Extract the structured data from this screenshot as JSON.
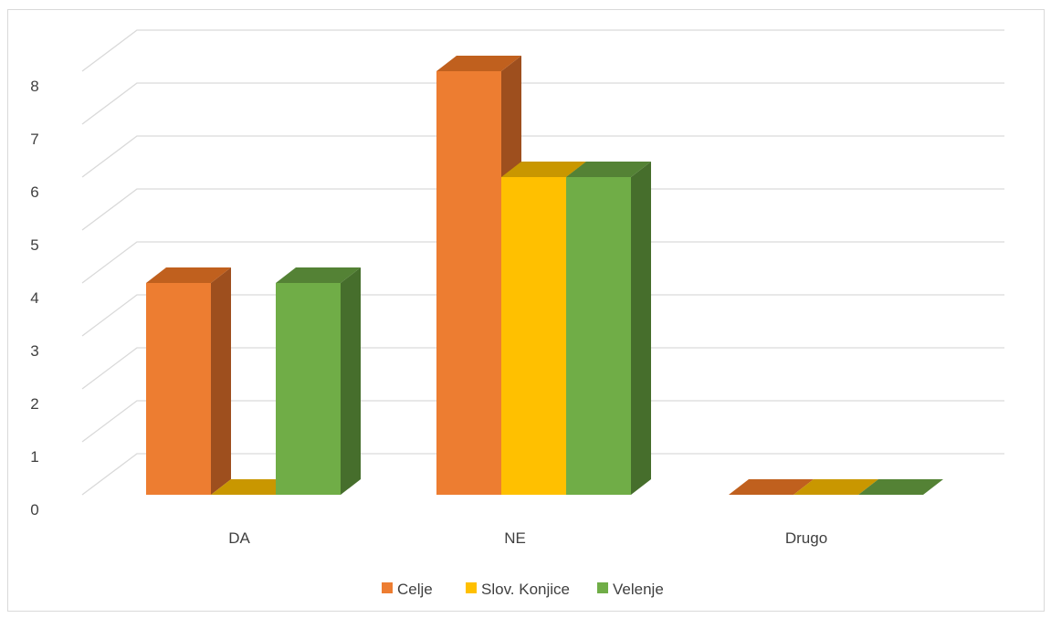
{
  "chart_data": {
    "type": "bar",
    "subtype": "3d-clustered-column",
    "categories": [
      "DA",
      "NE",
      "Drugo"
    ],
    "series": [
      {
        "name": "Celje",
        "values": [
          4,
          8,
          0
        ],
        "color": "#ED7D31",
        "side_color": "#9E4F1E",
        "top_color": "#C0601E"
      },
      {
        "name": "Slov. Konjice",
        "values": [
          0,
          6,
          0
        ],
        "color": "#FFC000",
        "side_color": "#A97F00",
        "top_color": "#C99700"
      },
      {
        "name": "Velenje",
        "values": [
          4,
          6,
          0
        ],
        "color": "#70AD47",
        "side_color": "#466E2C",
        "top_color": "#548235"
      }
    ],
    "yticks": [
      "0",
      "1",
      "2",
      "3",
      "4",
      "5",
      "6",
      "7",
      "8"
    ],
    "ylim": [
      0,
      8
    ],
    "grid": true,
    "legend_position": "bottom"
  }
}
